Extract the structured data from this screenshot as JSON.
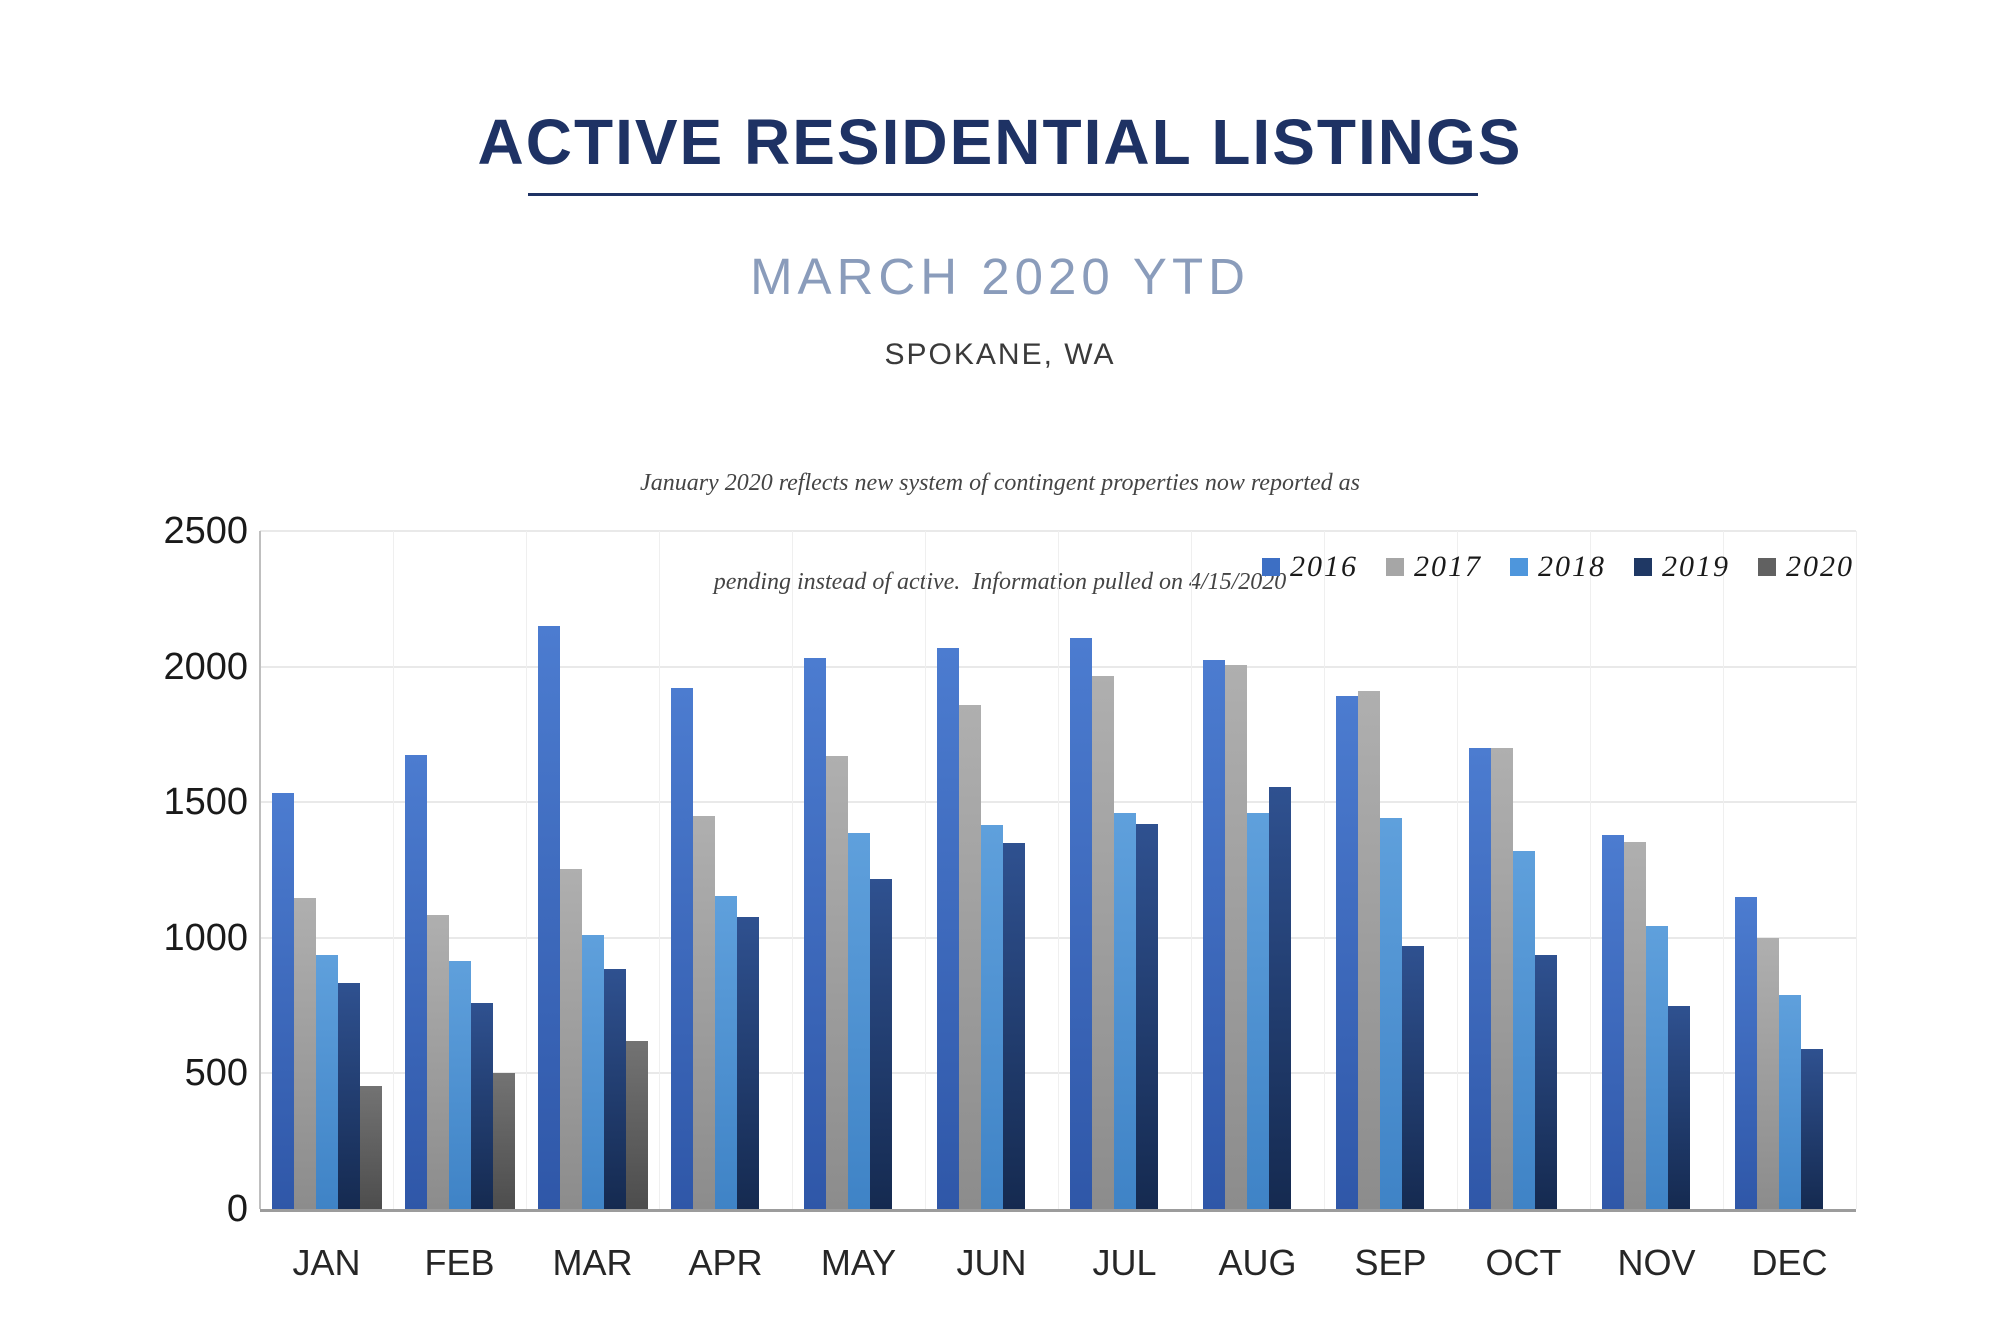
{
  "header": {
    "title": "ACTIVE RESIDENTIAL LISTINGS",
    "subtitle": "MARCH 2020 YTD",
    "location": "SPOKANE, WA",
    "note_line1": "January 2020 reflects new system of contingent properties now reported as",
    "note_line2": "pending instead of active.  Information pulled on 4/15/2020",
    "title_color": "#1E3264",
    "subtitle_color": "#8A9CBB"
  },
  "chart_data": {
    "type": "bar",
    "title": "Active residential listings by month, Spokane WA",
    "categories": [
      "JAN",
      "FEB",
      "MAR",
      "APR",
      "MAY",
      "JUN",
      "JUL",
      "AUG",
      "SEP",
      "OCT",
      "NOV",
      "DEC"
    ],
    "series": [
      {
        "name": "2016",
        "color": "#3D6FC4",
        "color_light": "#4C7CD0",
        "color_dark": "#2F57A8",
        "values": [
          1535,
          1675,
          2150,
          1920,
          2030,
          2070,
          2105,
          2025,
          1890,
          1700,
          1380,
          1150
        ]
      },
      {
        "name": "2017",
        "color": "#A6A6A6",
        "color_light": "#AFAFAF",
        "color_dark": "#8C8C8C",
        "values": [
          1145,
          1085,
          1255,
          1450,
          1670,
          1860,
          1965,
          2005,
          1910,
          1700,
          1355,
          1000
        ]
      },
      {
        "name": "2018",
        "color": "#4E96DC",
        "color_light": "#5FA0DC",
        "color_dark": "#3F83C6",
        "values": [
          935,
          915,
          1010,
          1155,
          1385,
          1415,
          1460,
          1460,
          1440,
          1320,
          1045,
          790
        ]
      },
      {
        "name": "2019",
        "color": "#1F3864",
        "color_light": "#2F5190",
        "color_dark": "#152A50",
        "values": [
          835,
          760,
          885,
          1075,
          1215,
          1350,
          1420,
          1555,
          970,
          935,
          750,
          590
        ]
      },
      {
        "name": "2020",
        "color": "#616161",
        "color_light": "#737373",
        "color_dark": "#4D4D4D",
        "values": [
          455,
          500,
          620,
          null,
          null,
          null,
          null,
          null,
          null,
          null,
          null,
          null
        ]
      }
    ],
    "ylim": [
      0,
      2500
    ],
    "y_ticks": [
      0,
      500,
      1000,
      1500,
      2000,
      2500
    ],
    "grid": true,
    "legend_position": "top-right"
  }
}
